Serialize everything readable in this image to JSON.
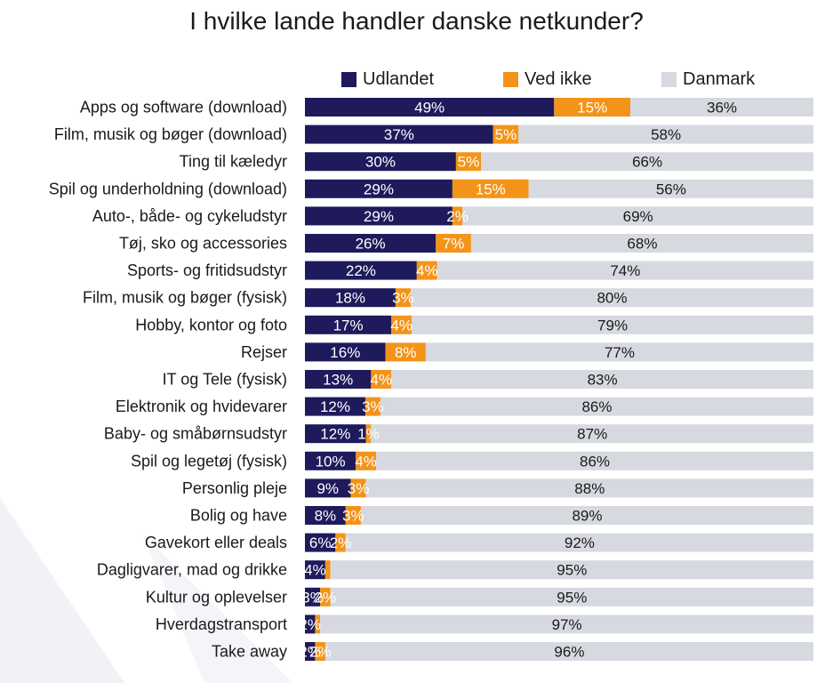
{
  "title": "I hvilke lande handler danske netkunder?",
  "colors": {
    "udlandet": "#1e1a5c",
    "ved_ikke": "#f39419",
    "danmark": "#d6d9e0"
  },
  "legend": [
    {
      "label": "Udlandet",
      "color": "#1e1a5c"
    },
    {
      "label": "Ved ikke",
      "color": "#f39419"
    },
    {
      "label": "Danmark",
      "color": "#d6d9e0"
    }
  ],
  "chart_data": {
    "type": "bar",
    "orientation": "horizontal",
    "stacked": true,
    "title": "I hvilke lande handler danske netkunder?",
    "legend_position": "top",
    "categories": [
      "Apps og software (download)",
      "Film, musik og bøger (download)",
      "Ting til kæledyr",
      "Spil og underholdning (download)",
      "Auto-, både- og cykeludstyr",
      "Tøj, sko og accessories",
      "Sports- og fritidsudstyr",
      "Film, musik og bøger (fysisk)",
      "Hobby, kontor og foto",
      "Rejser",
      "IT og Tele (fysisk)",
      "Elektronik og hvidevarer",
      "Baby- og småbørnsudstyr",
      "Spil og legetøj (fysisk)",
      "Personlig pleje",
      "Bolig og have",
      "Gavekort eller deals",
      "Dagligvarer, mad og drikke",
      "Kultur og oplevelser",
      "Hverdagstransport",
      "Take away"
    ],
    "series": [
      {
        "name": "Udlandet",
        "values": [
          49,
          37,
          30,
          29,
          29,
          26,
          22,
          18,
          17,
          16,
          13,
          12,
          12,
          10,
          9,
          8,
          6,
          4,
          3,
          2,
          2
        ]
      },
      {
        "name": "Ved ikke",
        "values": [
          15,
          5,
          5,
          15,
          2,
          7,
          4,
          3,
          4,
          8,
          4,
          3,
          1,
          4,
          3,
          3,
          2,
          1,
          2,
          1,
          2
        ]
      },
      {
        "name": "Danmark",
        "values": [
          36,
          58,
          66,
          56,
          69,
          68,
          74,
          80,
          79,
          77,
          83,
          86,
          87,
          86,
          88,
          89,
          92,
          95,
          95,
          97,
          96
        ]
      }
    ],
    "value_labels": {
      "Udlandet": [
        "49%",
        "37%",
        "30%",
        "29%",
        "29%",
        "26%",
        "22%",
        "18%",
        "17%",
        "16%",
        "13%",
        "12%",
        "12%",
        "10%",
        "9%",
        "8%",
        "6%",
        "4%",
        "3%",
        "2%",
        "2%"
      ],
      "Ved ikke": [
        "15%",
        "5%",
        "5%",
        "15%",
        "2%",
        "7%",
        "4%",
        "3%",
        "4%",
        "8%",
        "4%",
        "3%",
        "1%",
        "4%",
        "3%",
        "3%",
        "2%",
        "",
        "2%",
        "",
        "2%"
      ],
      "Danmark": [
        "36%",
        "58%",
        "66%",
        "56%",
        "69%",
        "68%",
        "74%",
        "80%",
        "79%",
        "77%",
        "83%",
        "86%",
        "87%",
        "86%",
        "88%",
        "89%",
        "92%",
        "95%",
        "95%",
        "97%",
        "96%"
      ]
    },
    "xlim": [
      0,
      100
    ],
    "unit": "%"
  }
}
